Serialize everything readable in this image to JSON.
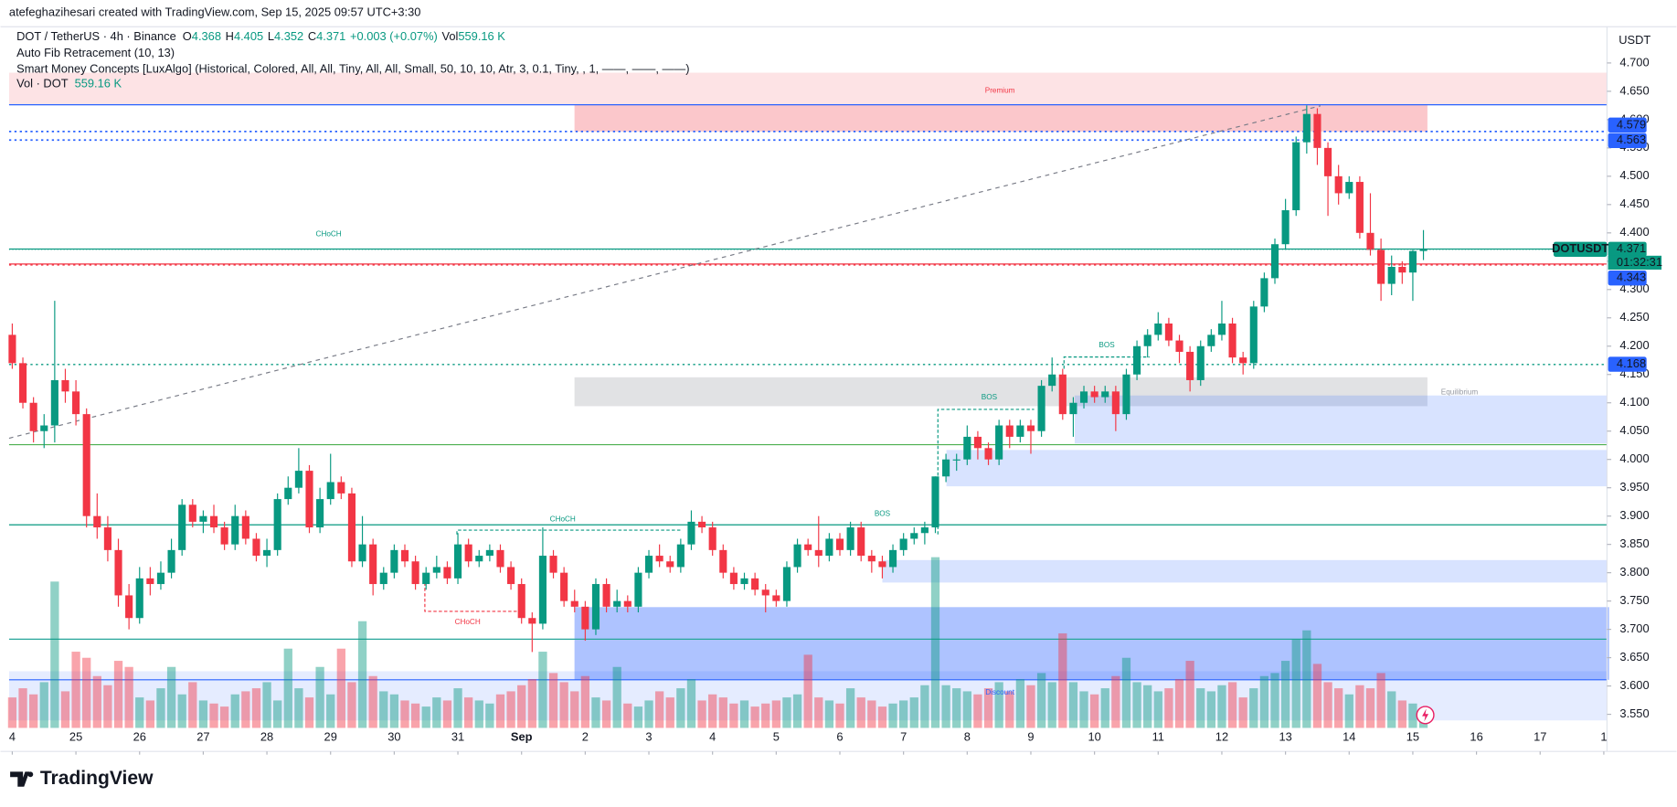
{
  "header": {
    "credit": "atefeghazihesari created with TradingView.com, Sep 15, 2025 09:57 UTC+3:30",
    "symbol": "DOT / TetherUS · 4h · Binance",
    "o_label": "O",
    "o_value": "4.368",
    "h_label": "H",
    "h_value": "4.405",
    "l_label": "L",
    "l_value": "4.352",
    "c_label": "C",
    "c_value": "4.371",
    "change": "+0.003 (+0.07%)",
    "vol_label": "Vol",
    "vol_value": "559.16 K",
    "indicator_fib": "Auto Fib Retracement (10, 13)",
    "indicator_smc": "Smart Money Concepts [LuxAlgo] (Historical, Colored, All, All, Tiny, All, All, Small, 50, 10, 10, Atr, 3, 0.1, Tiny, , 1, ——, ——, ——)",
    "indicator_vol": "Vol · DOT",
    "indicator_vol_value": "559.16 K",
    "logo": "TradingView"
  },
  "chart_data": {
    "type": "candlestick",
    "currency": "USDT",
    "symbol_badge": "DOTUSDT",
    "countdown": "01:32:31",
    "up_color": "#089981",
    "down_color": "#f23645",
    "grid": false,
    "xlim": [
      -0.3,
      150.3
    ],
    "ylim": [
      3.526,
      4.764
    ],
    "volume_ylim": [
      0,
      23000
    ],
    "xticks": [
      {
        "value": 0,
        "label": "4"
      },
      {
        "value": 6,
        "label": "25"
      },
      {
        "value": 12,
        "label": "26"
      },
      {
        "value": 18,
        "label": "27"
      },
      {
        "value": 24,
        "label": "28"
      },
      {
        "value": 30,
        "label": "29"
      },
      {
        "value": 36,
        "label": "30"
      },
      {
        "value": 42,
        "label": "31"
      },
      {
        "value": 48,
        "label": "Sep"
      },
      {
        "value": 54,
        "label": "2"
      },
      {
        "value": 60,
        "label": "3"
      },
      {
        "value": 66,
        "label": "4"
      },
      {
        "value": 72,
        "label": "5"
      },
      {
        "value": 78,
        "label": "6"
      },
      {
        "value": 84,
        "label": "7"
      },
      {
        "value": 90,
        "label": "8"
      },
      {
        "value": 96,
        "label": "9"
      },
      {
        "value": 102,
        "label": "10"
      },
      {
        "value": 108,
        "label": "11"
      },
      {
        "value": 114,
        "label": "12"
      },
      {
        "value": 120,
        "label": "13"
      },
      {
        "value": 126,
        "label": "14"
      },
      {
        "value": 132,
        "label": "15"
      },
      {
        "value": 138,
        "label": "16"
      },
      {
        "value": 144,
        "label": "17"
      },
      {
        "value": 150,
        "label": "1"
      }
    ],
    "yticks": [
      {
        "value": 3.55,
        "label": "3.550"
      },
      {
        "value": 3.6,
        "label": "3.600"
      },
      {
        "value": 3.65,
        "label": "3.650"
      },
      {
        "value": 3.7,
        "label": "3.700"
      },
      {
        "value": 3.75,
        "label": "3.750"
      },
      {
        "value": 3.8,
        "label": "3.800"
      },
      {
        "value": 3.85,
        "label": "3.850"
      },
      {
        "value": 3.9,
        "label": "3.900"
      },
      {
        "value": 3.95,
        "label": "3.950"
      },
      {
        "value": 4.0,
        "label": "4.000"
      },
      {
        "value": 4.05,
        "label": "4.050"
      },
      {
        "value": 4.1,
        "label": "4.100"
      },
      {
        "value": 4.15,
        "label": "4.150"
      },
      {
        "value": 4.2,
        "label": "4.200"
      },
      {
        "value": 4.25,
        "label": "4.250"
      },
      {
        "value": 4.3,
        "label": "4.300"
      },
      {
        "value": 4.35,
        "label": "4.350"
      },
      {
        "value": 4.4,
        "label": "4.400"
      },
      {
        "value": 4.45,
        "label": "4.450"
      },
      {
        "value": 4.5,
        "label": "4.500"
      },
      {
        "value": 4.55,
        "label": "4.550"
      },
      {
        "value": 4.6,
        "label": "4.600"
      },
      {
        "value": 4.65,
        "label": "4.650"
      },
      {
        "value": 4.7,
        "label": "4.700"
      }
    ],
    "price_labels": [
      4.579,
      4.563,
      4.371,
      4.343,
      4.168
    ],
    "annotations": [
      "Premium",
      "Equilibrium",
      "Discount",
      "CHoCH",
      "CHoCH",
      "CHoCH",
      "BOS",
      "BOS",
      "BOS"
    ],
    "candles": [
      [
        4.22,
        4.24,
        4.16,
        4.17
      ],
      [
        4.17,
        4.18,
        4.09,
        4.1
      ],
      [
        4.1,
        4.11,
        4.03,
        4.05
      ],
      [
        4.05,
        4.08,
        4.02,
        4.06
      ],
      [
        4.06,
        4.28,
        4.03,
        4.14
      ],
      [
        4.14,
        4.16,
        4.1,
        4.12
      ],
      [
        4.12,
        4.14,
        4.06,
        4.08
      ],
      [
        4.08,
        4.09,
        3.88,
        3.9
      ],
      [
        3.9,
        3.94,
        3.86,
        3.88
      ],
      [
        3.88,
        3.9,
        3.82,
        3.84
      ],
      [
        3.84,
        3.86,
        3.74,
        3.76
      ],
      [
        3.76,
        3.78,
        3.7,
        3.72
      ],
      [
        3.72,
        3.81,
        3.71,
        3.79
      ],
      [
        3.79,
        3.81,
        3.76,
        3.78
      ],
      [
        3.78,
        3.82,
        3.77,
        3.8
      ],
      [
        3.8,
        3.86,
        3.79,
        3.84
      ],
      [
        3.84,
        3.93,
        3.83,
        3.92
      ],
      [
        3.92,
        3.93,
        3.88,
        3.89
      ],
      [
        3.89,
        3.91,
        3.87,
        3.9
      ],
      [
        3.9,
        3.92,
        3.87,
        3.88
      ],
      [
        3.88,
        3.89,
        3.84,
        3.85
      ],
      [
        3.85,
        3.92,
        3.84,
        3.9
      ],
      [
        3.9,
        3.91,
        3.85,
        3.86
      ],
      [
        3.86,
        3.87,
        3.82,
        3.83
      ],
      [
        3.83,
        3.86,
        3.81,
        3.84
      ],
      [
        3.84,
        3.94,
        3.83,
        3.93
      ],
      [
        3.93,
        3.97,
        3.92,
        3.95
      ],
      [
        3.95,
        4.02,
        3.94,
        3.98
      ],
      [
        3.98,
        3.99,
        3.87,
        3.88
      ],
      [
        3.88,
        3.95,
        3.87,
        3.93
      ],
      [
        3.93,
        4.01,
        3.92,
        3.96
      ],
      [
        3.96,
        3.97,
        3.93,
        3.94
      ],
      [
        3.94,
        3.95,
        3.81,
        3.82
      ],
      [
        3.82,
        3.9,
        3.81,
        3.85
      ],
      [
        3.85,
        3.86,
        3.76,
        3.78
      ],
      [
        3.78,
        3.81,
        3.77,
        3.8
      ],
      [
        3.8,
        3.85,
        3.79,
        3.84
      ],
      [
        3.84,
        3.85,
        3.81,
        3.82
      ],
      [
        3.82,
        3.83,
        3.77,
        3.78
      ],
      [
        3.78,
        3.81,
        3.77,
        3.8
      ],
      [
        3.8,
        3.83,
        3.79,
        3.81
      ],
      [
        3.81,
        3.82,
        3.78,
        3.79
      ],
      [
        3.79,
        3.87,
        3.78,
        3.85
      ],
      [
        3.85,
        3.86,
        3.81,
        3.82
      ],
      [
        3.82,
        3.84,
        3.81,
        3.83
      ],
      [
        3.83,
        3.85,
        3.82,
        3.84
      ],
      [
        3.84,
        3.85,
        3.8,
        3.81
      ],
      [
        3.81,
        3.82,
        3.77,
        3.78
      ],
      [
        3.78,
        3.79,
        3.71,
        3.72
      ],
      [
        3.72,
        3.73,
        3.66,
        3.71
      ],
      [
        3.71,
        3.88,
        3.7,
        3.83
      ],
      [
        3.83,
        3.84,
        3.79,
        3.8
      ],
      [
        3.8,
        3.81,
        3.74,
        3.75
      ],
      [
        3.75,
        3.77,
        3.73,
        3.74
      ],
      [
        3.74,
        3.75,
        3.68,
        3.7
      ],
      [
        3.7,
        3.79,
        3.69,
        3.78
      ],
      [
        3.78,
        3.79,
        3.73,
        3.74
      ],
      [
        3.74,
        3.77,
        3.73,
        3.75
      ],
      [
        3.75,
        3.76,
        3.73,
        3.74
      ],
      [
        3.74,
        3.81,
        3.73,
        3.8
      ],
      [
        3.8,
        3.84,
        3.79,
        3.83
      ],
      [
        3.83,
        3.85,
        3.81,
        3.82
      ],
      [
        3.82,
        3.83,
        3.8,
        3.81
      ],
      [
        3.81,
        3.86,
        3.8,
        3.85
      ],
      [
        3.85,
        3.91,
        3.84,
        3.89
      ],
      [
        3.89,
        3.9,
        3.87,
        3.88
      ],
      [
        3.88,
        3.89,
        3.83,
        3.84
      ],
      [
        3.84,
        3.85,
        3.79,
        3.8
      ],
      [
        3.8,
        3.81,
        3.77,
        3.78
      ],
      [
        3.78,
        3.8,
        3.77,
        3.79
      ],
      [
        3.79,
        3.8,
        3.76,
        3.77
      ],
      [
        3.77,
        3.78,
        3.73,
        3.76
      ],
      [
        3.76,
        3.77,
        3.74,
        3.75
      ],
      [
        3.75,
        3.82,
        3.74,
        3.81
      ],
      [
        3.81,
        3.86,
        3.8,
        3.85
      ],
      [
        3.85,
        3.86,
        3.83,
        3.84
      ],
      [
        3.84,
        3.9,
        3.81,
        3.83
      ],
      [
        3.83,
        3.87,
        3.82,
        3.86
      ],
      [
        3.86,
        3.87,
        3.83,
        3.84
      ],
      [
        3.84,
        3.89,
        3.83,
        3.88
      ],
      [
        3.88,
        3.89,
        3.82,
        3.83
      ],
      [
        3.83,
        3.84,
        3.8,
        3.82
      ],
      [
        3.82,
        3.83,
        3.79,
        3.81
      ],
      [
        3.81,
        3.85,
        3.8,
        3.84
      ],
      [
        3.84,
        3.87,
        3.83,
        3.86
      ],
      [
        3.86,
        3.88,
        3.85,
        3.87
      ],
      [
        3.87,
        3.89,
        3.85,
        3.88
      ],
      [
        3.88,
        3.97,
        3.87,
        3.97
      ],
      [
        3.97,
        4.01,
        3.96,
        4.0
      ],
      [
        4.0,
        4.01,
        3.98,
        4.0
      ],
      [
        4.0,
        4.06,
        3.99,
        4.04
      ],
      [
        4.04,
        4.05,
        4.0,
        4.02
      ],
      [
        4.02,
        4.03,
        3.99,
        4.0
      ],
      [
        4.0,
        4.07,
        3.99,
        4.06
      ],
      [
        4.06,
        4.07,
        4.02,
        4.04
      ],
      [
        4.04,
        4.07,
        4.03,
        4.06
      ],
      [
        4.06,
        4.07,
        4.01,
        4.05
      ],
      [
        4.05,
        4.14,
        4.04,
        4.13
      ],
      [
        4.13,
        4.18,
        4.12,
        4.15
      ],
      [
        4.15,
        4.16,
        4.07,
        4.08
      ],
      [
        4.08,
        4.11,
        4.04,
        4.1
      ],
      [
        4.1,
        4.13,
        4.09,
        4.12
      ],
      [
        4.12,
        4.13,
        4.1,
        4.11
      ],
      [
        4.11,
        4.13,
        4.1,
        4.12
      ],
      [
        4.12,
        4.13,
        4.05,
        4.08
      ],
      [
        4.08,
        4.16,
        4.07,
        4.15
      ],
      [
        4.15,
        4.21,
        4.14,
        4.2
      ],
      [
        4.2,
        4.23,
        4.18,
        4.22
      ],
      [
        4.22,
        4.26,
        4.21,
        4.24
      ],
      [
        4.24,
        4.25,
        4.2,
        4.21
      ],
      [
        4.21,
        4.22,
        4.17,
        4.19
      ],
      [
        4.19,
        4.2,
        4.12,
        4.14
      ],
      [
        4.14,
        4.21,
        4.13,
        4.2
      ],
      [
        4.2,
        4.23,
        4.19,
        4.22
      ],
      [
        4.22,
        4.28,
        4.21,
        4.24
      ],
      [
        4.24,
        4.25,
        4.17,
        4.18
      ],
      [
        4.18,
        4.19,
        4.15,
        4.17
      ],
      [
        4.17,
        4.28,
        4.16,
        4.27
      ],
      [
        4.27,
        4.33,
        4.26,
        4.32
      ],
      [
        4.32,
        4.39,
        4.31,
        4.38
      ],
      [
        4.38,
        4.46,
        4.37,
        4.44
      ],
      [
        4.44,
        4.57,
        4.43,
        4.56
      ],
      [
        4.56,
        4.625,
        4.54,
        4.61
      ],
      [
        4.61,
        4.62,
        4.52,
        4.55
      ],
      [
        4.55,
        4.56,
        4.43,
        4.5
      ],
      [
        4.5,
        4.52,
        4.45,
        4.47
      ],
      [
        4.47,
        4.5,
        4.46,
        4.49
      ],
      [
        4.49,
        4.5,
        4.39,
        4.4
      ],
      [
        4.4,
        4.47,
        4.36,
        4.37
      ],
      [
        4.37,
        4.39,
        4.28,
        4.31
      ],
      [
        4.31,
        4.36,
        4.29,
        4.34
      ],
      [
        4.34,
        4.35,
        4.31,
        4.33
      ],
      [
        4.33,
        4.37,
        4.28,
        4.368
      ],
      [
        4.368,
        4.405,
        4.352,
        4.371
      ]
    ],
    "volume": [
      1000,
      1300,
      1100,
      1500,
      4800,
      1200,
      2500,
      2300,
      1700,
      1400,
      2200,
      2000,
      1000,
      900,
      1300,
      2000,
      1100,
      1500,
      900,
      800,
      700,
      1100,
      1200,
      1300,
      1500,
      900,
      2600,
      1300,
      1000,
      2000,
      1100,
      2600,
      1500,
      3500,
      1700,
      1200,
      1100,
      900,
      800,
      700,
      1000,
      900,
      1300,
      1000,
      900,
      800,
      1100,
      1200,
      1400,
      1600,
      2500,
      1800,
      1500,
      1200,
      1700,
      1000,
      900,
      2000,
      800,
      700,
      900,
      1200,
      1000,
      1300,
      1600,
      900,
      1100,
      1000,
      800,
      900,
      700,
      800,
      900,
      1000,
      1100,
      2400,
      1000,
      900,
      800,
      1300,
      1000,
      900,
      700,
      800,
      900,
      1000,
      1400,
      5600,
      1400,
      1300,
      1200,
      1100,
      1300,
      1500,
      1200,
      1600,
      1400,
      1800,
      1500,
      3100,
      1500,
      1200,
      1100,
      1300,
      1700,
      2300,
      1500,
      1400,
      1200,
      1300,
      1600,
      2200,
      1300,
      1200,
      1400,
      1500,
      1000,
      1300,
      1700,
      1800,
      2200,
      2900,
      3200,
      2100,
      1500,
      1300,
      1100,
      1400,
      1300,
      1800,
      1200,
      900,
      800,
      559.16
    ]
  }
}
